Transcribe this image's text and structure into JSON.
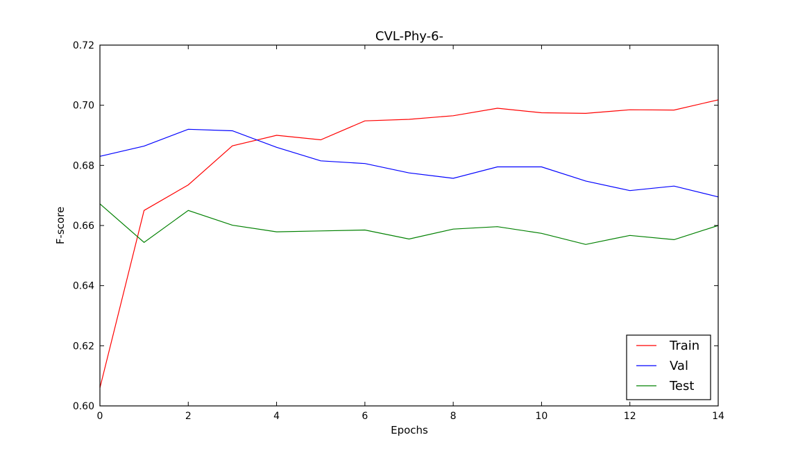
{
  "chart_data": {
    "type": "line",
    "title": "CVL-Phy-6-",
    "xlabel": "Epochs",
    "ylabel": "F-score",
    "xlim": [
      0,
      14
    ],
    "ylim": [
      0.6,
      0.72
    ],
    "xticks": [
      "0",
      "2",
      "4",
      "6",
      "8",
      "10",
      "12",
      "14"
    ],
    "yticks": [
      "0.60",
      "0.62",
      "0.64",
      "0.66",
      "0.68",
      "0.70",
      "0.72"
    ],
    "grid": false,
    "legend_position": "lower-right",
    "x": [
      0,
      1,
      2,
      3,
      4,
      5,
      6,
      7,
      8,
      9,
      10,
      11,
      12,
      13,
      14
    ],
    "series": [
      {
        "name": "Train",
        "color": "#ff0000",
        "values": [
          0.606,
          0.665,
          0.6735,
          0.6865,
          0.69,
          0.6885,
          0.6948,
          0.6953,
          0.6965,
          0.699,
          0.6975,
          0.6973,
          0.6985,
          0.6984,
          0.7018
        ]
      },
      {
        "name": "Val",
        "color": "#0000ff",
        "values": [
          0.683,
          0.6864,
          0.692,
          0.6915,
          0.686,
          0.6815,
          0.6806,
          0.6775,
          0.6757,
          0.6795,
          0.6795,
          0.6748,
          0.6716,
          0.6731,
          0.6695
        ]
      },
      {
        "name": "Test",
        "color": "#008000",
        "values": [
          0.6672,
          0.6544,
          0.665,
          0.6601,
          0.6579,
          0.6582,
          0.6585,
          0.6555,
          0.6588,
          0.6596,
          0.6574,
          0.6537,
          0.6567,
          0.6553,
          0.66
        ]
      }
    ]
  }
}
